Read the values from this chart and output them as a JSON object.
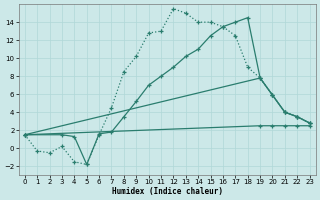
{
  "background_color": "#cce8e8",
  "line_color": "#2a7d6e",
  "xlabel": "Humidex (Indice chaleur)",
  "xlim": [
    -0.5,
    23.5
  ],
  "ylim": [
    -3.0,
    16.0
  ],
  "yticks": [
    -2,
    0,
    2,
    4,
    6,
    8,
    10,
    12,
    14
  ],
  "xticks": [
    0,
    1,
    2,
    3,
    4,
    5,
    6,
    7,
    8,
    9,
    10,
    11,
    12,
    13,
    14,
    15,
    16,
    17,
    18,
    19,
    20,
    21,
    22,
    23
  ],
  "curve1_x": [
    0,
    1,
    2,
    3,
    4,
    5,
    6,
    7,
    8,
    9,
    10,
    11,
    12,
    13,
    14,
    15,
    16,
    17,
    18,
    19,
    20,
    21,
    22,
    23
  ],
  "curve1_y": [
    1.5,
    -0.3,
    -0.5,
    0.2,
    -1.5,
    -1.8,
    1.5,
    4.5,
    8.5,
    10.2,
    12.8,
    13.0,
    15.5,
    15.0,
    14.0,
    14.0,
    13.5,
    12.5,
    9.0,
    7.8,
    5.9,
    4.0,
    3.5,
    2.8
  ],
  "curve1_style": "dotted",
  "curve2_x": [
    0,
    3,
    4,
    5,
    6,
    7,
    8,
    9,
    10,
    11,
    12,
    13,
    14,
    15,
    16,
    17,
    18,
    19,
    20,
    21,
    22,
    23
  ],
  "curve2_y": [
    1.5,
    1.5,
    1.3,
    -1.8,
    1.6,
    1.8,
    3.5,
    5.2,
    7.0,
    8.0,
    9.0,
    10.2,
    11.0,
    12.5,
    13.5,
    14.0,
    14.5,
    7.8,
    5.9,
    4.0,
    3.5,
    2.8
  ],
  "curve2_style": "solid",
  "curve3_x": [
    0,
    19,
    20,
    21,
    22,
    23
  ],
  "curve3_y": [
    1.5,
    7.8,
    5.9,
    4.0,
    3.5,
    2.8
  ],
  "curve3_style": "solid",
  "curve4_x": [
    0,
    19,
    20,
    21,
    22,
    23
  ],
  "curve4_y": [
    1.5,
    2.5,
    2.5,
    2.5,
    2.5,
    2.5
  ],
  "curve4_style": "solid"
}
